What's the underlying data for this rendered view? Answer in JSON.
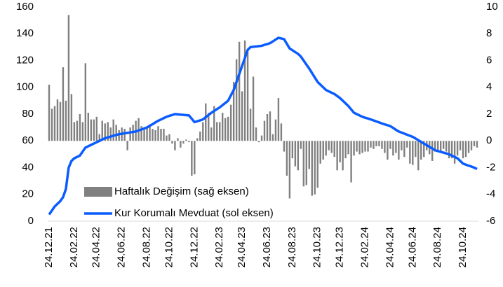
{
  "chart_data": {
    "type": "combo",
    "categories": [
      "24.12.21",
      null,
      null,
      null,
      null,
      null,
      null,
      null,
      null,
      "24.02.22",
      null,
      null,
      null,
      null,
      null,
      null,
      null,
      "24.04.22",
      null,
      null,
      null,
      null,
      null,
      null,
      null,
      null,
      "24.06.22",
      null,
      null,
      null,
      null,
      null,
      null,
      null,
      null,
      "24.08.22",
      null,
      null,
      null,
      null,
      null,
      null,
      null,
      "24.10.22",
      null,
      null,
      null,
      null,
      null,
      null,
      null,
      null,
      "24.12.22",
      null,
      null,
      null,
      null,
      null,
      null,
      null,
      null,
      "24.02.23",
      null,
      null,
      null,
      null,
      null,
      null,
      null,
      "24.04.23",
      null,
      null,
      null,
      null,
      null,
      null,
      null,
      null,
      "24.06.23",
      null,
      null,
      null,
      null,
      null,
      null,
      null,
      null,
      "24.08.23",
      null,
      null,
      null,
      null,
      null,
      null,
      null,
      null,
      "24.10.23",
      null,
      null,
      null,
      null,
      null,
      null,
      null,
      "24.12.23",
      null,
      null,
      null,
      null,
      null,
      null,
      null,
      null,
      "24.02.24",
      null,
      null,
      null,
      null,
      null,
      null,
      null,
      null,
      "24.04.24",
      null,
      null,
      null,
      null,
      null,
      null,
      null,
      "24.06.24",
      null,
      null,
      null,
      null,
      null,
      null,
      null,
      null,
      "24.08.24",
      null,
      null,
      null,
      null,
      null,
      null,
      null,
      null,
      "24.10.24",
      null,
      null,
      null,
      null,
      null
    ],
    "series": [
      {
        "name": "Haftalık Değişim (sağ eksen)",
        "type": "bar",
        "axis": "y2",
        "color": "#808080",
        "values": [
          4.2,
          2.4,
          2.6,
          3.1,
          2.9,
          5.5,
          3.0,
          9.4,
          3.5,
          1.4,
          1.5,
          2.0,
          1.4,
          5.8,
          2.1,
          1.6,
          1.6,
          1.8,
          0.5,
          1.5,
          1.3,
          1.4,
          1.0,
          1.6,
          1.2,
          0.8,
          1.0,
          0.9,
          -0.7,
          1.0,
          1.2,
          1.5,
          1.7,
          1.1,
          0.9,
          1.0,
          1.2,
          0.9,
          0.8,
          1.1,
          0.9,
          0.9,
          0.4,
          0.5,
          -0.2,
          -0.7,
          0.2,
          -0.5,
          -0.2,
          0.1,
          -0.1,
          -2.6,
          -2.5,
          0.2,
          0.7,
          1.4,
          2.8,
          2.1,
          1.0,
          2.6,
          1.4,
          1.4,
          2.1,
          1.7,
          1.8,
          2.7,
          4.4,
          6.1,
          7.4,
          3.7,
          7.5,
          6.7,
          2.4,
          4.8,
          1.0,
          -0.1,
          0.4,
          1.5,
          2.0,
          2.2,
          0.5,
          1.6,
          3.2,
          1.3,
          -0.8,
          -2.6,
          -4.3,
          -1.3,
          -1.9,
          -2.2,
          -0.6,
          -3.4,
          -3.3,
          -2.1,
          -4.1,
          -4.0,
          -3.5,
          -1.7,
          -1.4,
          -1.1,
          -0.7,
          -0.9,
          -1.2,
          -2.2,
          -1.6,
          -2.2,
          -1.3,
          -1.0,
          -3.1,
          -1.1,
          -0.8,
          -1.0,
          -0.9,
          -0.8,
          -0.8,
          -0.5,
          -0.6,
          -0.4,
          -0.4,
          -0.6,
          -0.9,
          -1.4,
          -0.6,
          -1.1,
          -0.9,
          -1.4,
          -0.7,
          -1.2,
          -0.5,
          -1.7,
          -1.8,
          -1.2,
          -2.2,
          -1.4,
          -1.2,
          -0.7,
          -1.0,
          -1.5,
          -0.8,
          -0.7,
          -0.8,
          -0.6,
          -0.8,
          -1.3,
          -1.3,
          -1.7,
          -1.1,
          -0.7,
          -1.3,
          -1.2,
          -0.9,
          -0.7,
          -0.4,
          -0.5
        ]
      },
      {
        "name": "Kur Korumalı Mevduat (sol eksen)",
        "type": "line",
        "axis": "y",
        "color": "#0a5cff",
        "values": [
          5,
          8,
          11,
          13,
          15,
          18,
          24,
          40,
          45,
          47,
          48,
          49,
          52,
          55,
          56,
          57,
          58,
          59,
          60,
          61,
          62,
          62.6,
          63.2,
          63.8,
          64.4,
          65,
          65.3,
          65.7,
          66,
          66.3,
          66.7,
          67,
          67.8,
          68.5,
          69.3,
          70,
          71.3,
          72.5,
          73.8,
          75,
          76,
          77,
          78,
          78.7,
          79.3,
          80,
          79.8,
          79.6,
          79.4,
          79.2,
          79,
          76.5,
          74,
          74.7,
          75.3,
          76,
          77.7,
          79.3,
          81,
          82.3,
          83.7,
          85,
          86.7,
          88.3,
          90,
          94,
          98,
          104,
          110,
          116,
          122,
          128,
          130,
          130.3,
          130.5,
          130.8,
          131,
          131.7,
          132.3,
          133,
          134.3,
          135.7,
          137,
          136.5,
          136,
          132.5,
          129,
          127.7,
          126.3,
          125,
          123,
          120,
          117,
          114,
          110.7,
          107.3,
          104,
          102,
          100,
          98,
          97,
          96,
          95,
          93.5,
          92,
          90,
          88,
          86,
          83.5,
          81,
          80,
          79,
          78,
          77.3,
          76.7,
          76,
          75.3,
          74.5,
          73.8,
          73,
          72.3,
          71.7,
          71,
          69.7,
          68.3,
          67,
          66.2,
          65.4,
          64.6,
          63.8,
          63,
          61.8,
          60.5,
          59.3,
          58,
          56.8,
          55.5,
          54.3,
          53,
          52.4,
          51.8,
          51.2,
          50.6,
          50,
          49,
          48,
          47,
          45,
          43,
          42.2,
          41.5,
          40.8,
          40,
          39
        ]
      }
    ],
    "ylim": [
      0,
      160
    ],
    "yticks": [
      0,
      20,
      40,
      60,
      80,
      100,
      120,
      140,
      160
    ],
    "y2lim": [
      -6,
      10
    ],
    "y2ticks": [
      -6,
      -4,
      -2,
      0,
      2,
      4,
      6,
      8,
      10
    ],
    "grid": false
  }
}
